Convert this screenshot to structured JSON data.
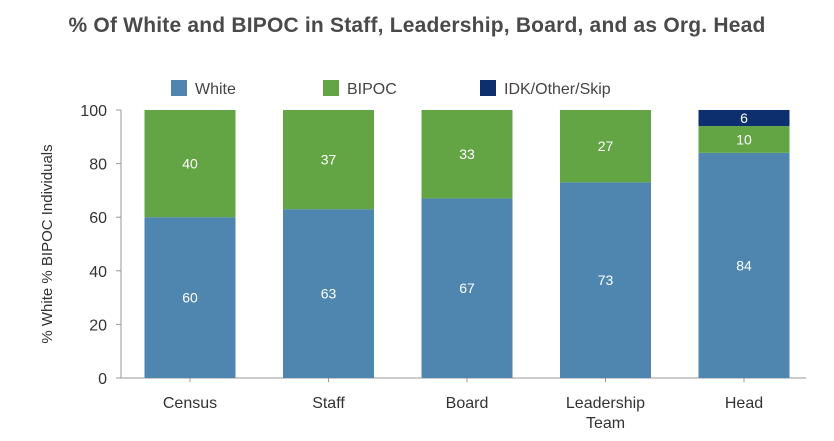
{
  "chart_data": {
    "type": "bar",
    "stacked": true,
    "title": "% Of White and BIPOC in Staff, Leadership, Board, and as Org. Head",
    "xlabel": "",
    "ylabel": "% White % BIPOC Individuals",
    "ylim": [
      0,
      100
    ],
    "yticks": [
      0,
      20,
      40,
      60,
      80,
      100
    ],
    "categories": [
      [
        "Census"
      ],
      [
        "Staff"
      ],
      [
        "Board"
      ],
      [
        "Leadership",
        "Team"
      ],
      [
        "Head"
      ]
    ],
    "series": [
      {
        "name": "White",
        "color": "#4e86b0",
        "values": [
          60,
          63,
          67,
          73,
          84
        ]
      },
      {
        "name": "BIPOC",
        "color": "#63a544",
        "values": [
          40,
          37,
          33,
          27,
          10
        ]
      },
      {
        "name": "IDK/Other/Skip",
        "color": "#0d2f6e",
        "values": [
          0,
          0,
          0,
          0,
          6
        ]
      }
    ],
    "legend_position": "top"
  }
}
